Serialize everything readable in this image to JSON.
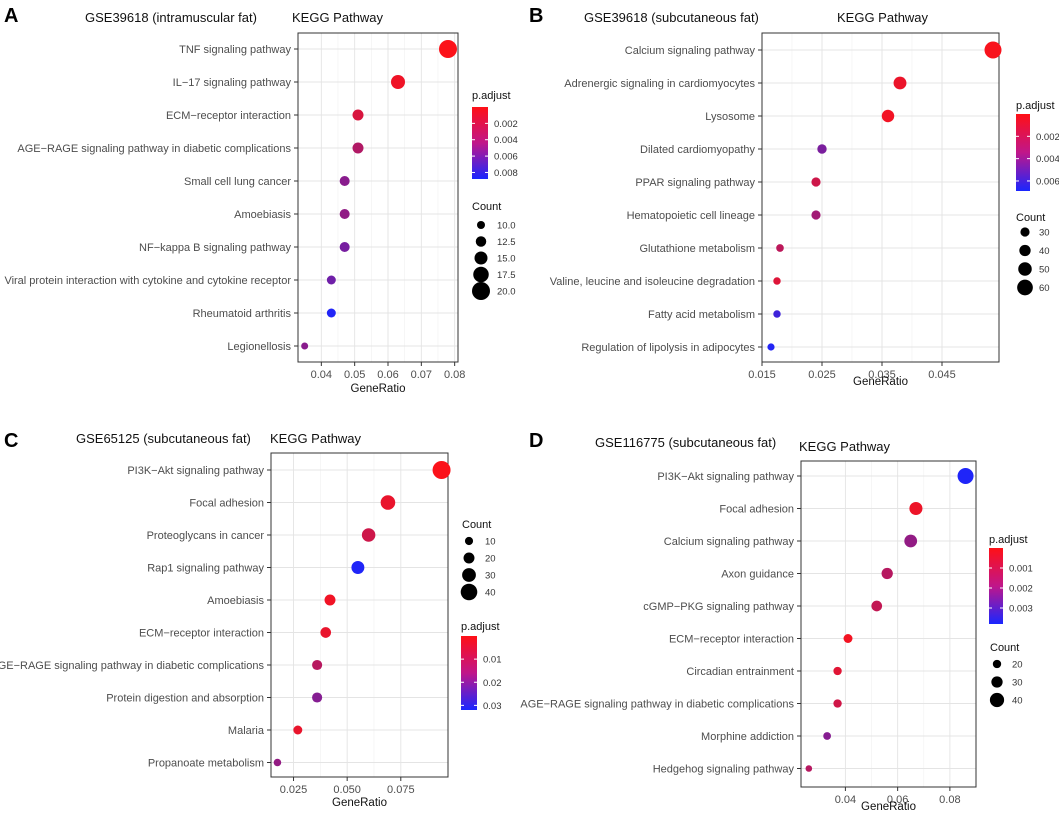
{
  "chart_data": [
    {
      "type": "scatter",
      "panel_letter": "A",
      "dataset_title": "GSE39618 (intramuscular fat)",
      "subtitle": "KEGG Pathway",
      "xlabel": "GeneRatio",
      "xlim": [
        0.033,
        0.081
      ],
      "xticks": [
        0.04,
        0.05,
        0.06,
        0.07,
        0.08
      ],
      "xtick_labels": [
        "0.04",
        "0.05",
        "0.06",
        "0.07",
        "0.08"
      ],
      "padj_range": [
        0.0,
        0.0088
      ],
      "padj_ticks": [
        0.002,
        0.004,
        0.006,
        0.008
      ],
      "padj_tick_labels": [
        "0.002",
        "0.004",
        "0.006",
        "0.008"
      ],
      "count_range": [
        7,
        20
      ],
      "count_ticks": [
        10,
        12.5,
        15,
        17.5,
        20
      ],
      "count_tick_labels": [
        "10.0",
        "12.5",
        "15.0",
        "17.5",
        "20.0"
      ],
      "legend_order": [
        "padj",
        "count"
      ],
      "legend_titles": {
        "padj": "p.adjust",
        "count": "Count"
      },
      "pathways": [
        {
          "name": "TNF signaling pathway",
          "gene_ratio": 0.078,
          "count": 20,
          "p_adjust": 0.0001
        },
        {
          "name": "IL−17 signaling pathway",
          "gene_ratio": 0.063,
          "count": 16,
          "p_adjust": 0.0006
        },
        {
          "name": "ECM−receptor interaction",
          "gene_ratio": 0.051,
          "count": 13,
          "p_adjust": 0.0015
        },
        {
          "name": "AGE−RAGE signaling pathway in diabetic complications",
          "gene_ratio": 0.051,
          "count": 13,
          "p_adjust": 0.003
        },
        {
          "name": "Small cell lung cancer",
          "gene_ratio": 0.047,
          "count": 12,
          "p_adjust": 0.0045
        },
        {
          "name": "Amoebiasis",
          "gene_ratio": 0.047,
          "count": 12,
          "p_adjust": 0.0042
        },
        {
          "name": "NF−kappa B signaling pathway",
          "gene_ratio": 0.047,
          "count": 12,
          "p_adjust": 0.0052
        },
        {
          "name": "Viral protein interaction with cytokine and cytokine receptor",
          "gene_ratio": 0.043,
          "count": 11,
          "p_adjust": 0.0055
        },
        {
          "name": "Rheumatoid arthritis",
          "gene_ratio": 0.043,
          "count": 11,
          "p_adjust": 0.0085
        },
        {
          "name": "Legionellosis",
          "gene_ratio": 0.035,
          "count": 9,
          "p_adjust": 0.0045
        }
      ]
    },
    {
      "type": "scatter",
      "panel_letter": "B",
      "dataset_title": "GSE39618 (subcutaneous fat)",
      "subtitle": "KEGG Pathway",
      "xlabel": "GeneRatio",
      "xlim": [
        0.015,
        0.0545
      ],
      "xticks": [
        0.015,
        0.025,
        0.035,
        0.045
      ],
      "xtick_labels": [
        "0.015",
        "0.025",
        "0.035",
        "0.045"
      ],
      "padj_range": [
        0.0,
        0.0069
      ],
      "padj_ticks": [
        0.002,
        0.004,
        0.006
      ],
      "padj_tick_labels": [
        "0.002",
        "0.004",
        "0.006"
      ],
      "count_range": [
        20,
        66
      ],
      "count_ticks": [
        30,
        40,
        50,
        60
      ],
      "count_tick_labels": [
        "30",
        "40",
        "50",
        "60"
      ],
      "legend_order": [
        "padj",
        "count"
      ],
      "legend_titles": {
        "padj": "p.adjust",
        "count": "Count"
      },
      "pathways": [
        {
          "name": "Calcium signaling pathway",
          "gene_ratio": 0.0535,
          "count": 66,
          "p_adjust": 0.0002
        },
        {
          "name": "Adrenergic signaling in cardiomyocytes",
          "gene_ratio": 0.038,
          "count": 47,
          "p_adjust": 0.0006
        },
        {
          "name": "Lysosome",
          "gene_ratio": 0.036,
          "count": 45,
          "p_adjust": 0.0004
        },
        {
          "name": "Dilated cardiomyopathy",
          "gene_ratio": 0.025,
          "count": 31,
          "p_adjust": 0.004
        },
        {
          "name": "PPAR signaling pathway",
          "gene_ratio": 0.024,
          "count": 30,
          "p_adjust": 0.0015
        },
        {
          "name": "Hematopoietic cell lineage",
          "gene_ratio": 0.024,
          "count": 30,
          "p_adjust": 0.0028
        },
        {
          "name": "Glutathione metabolism",
          "gene_ratio": 0.018,
          "count": 23,
          "p_adjust": 0.002
        },
        {
          "name": "Valine, leucine and isoleucine degradation",
          "gene_ratio": 0.0175,
          "count": 22,
          "p_adjust": 0.001
        },
        {
          "name": "Fatty acid metabolism",
          "gene_ratio": 0.0175,
          "count": 22,
          "p_adjust": 0.0058
        },
        {
          "name": "Regulation of lipolysis in adipocytes",
          "gene_ratio": 0.0165,
          "count": 21,
          "p_adjust": 0.0066
        }
      ]
    },
    {
      "type": "scatter",
      "panel_letter": "C",
      "dataset_title": "GSE65125 (subcutaneous fat)",
      "subtitle": "KEGG Pathway",
      "xlabel": "GeneRatio",
      "xlim": [
        0.0145,
        0.097
      ],
      "xticks": [
        0.025,
        0.05,
        0.075
      ],
      "xtick_labels": [
        "0.025",
        "0.050",
        "0.075"
      ],
      "padj_range": [
        0.0,
        0.032
      ],
      "padj_ticks": [
        0.01,
        0.02,
        0.03
      ],
      "padj_tick_labels": [
        "0.01",
        "0.02",
        "0.03"
      ],
      "count_range": [
        6,
        45
      ],
      "count_ticks": [
        10,
        20,
        30,
        40
      ],
      "count_tick_labels": [
        "10",
        "20",
        "30",
        "40"
      ],
      "legend_order": [
        "count",
        "padj"
      ],
      "legend_titles": {
        "padj": "p.adjust",
        "count": "Count"
      },
      "pathways": [
        {
          "name": "PI3K−Akt signaling pathway",
          "gene_ratio": 0.094,
          "count": 45,
          "p_adjust": 0.0005
        },
        {
          "name": "Focal adhesion",
          "gene_ratio": 0.069,
          "count": 33,
          "p_adjust": 0.003
        },
        {
          "name": "Proteoglycans in cancer",
          "gene_ratio": 0.06,
          "count": 29,
          "p_adjust": 0.007
        },
        {
          "name": "Rap1 signaling pathway",
          "gene_ratio": 0.055,
          "count": 27,
          "p_adjust": 0.031
        },
        {
          "name": "Amoebiasis",
          "gene_ratio": 0.042,
          "count": 20,
          "p_adjust": 0.002
        },
        {
          "name": "ECM−receptor interaction",
          "gene_ratio": 0.04,
          "count": 19,
          "p_adjust": 0.003
        },
        {
          "name": "AGE−RAGE signaling pathway in diabetic complications",
          "gene_ratio": 0.036,
          "count": 17,
          "p_adjust": 0.01
        },
        {
          "name": "Protein digestion and absorption",
          "gene_ratio": 0.036,
          "count": 17,
          "p_adjust": 0.017
        },
        {
          "name": "Malaria",
          "gene_ratio": 0.027,
          "count": 13,
          "p_adjust": 0.003
        },
        {
          "name": "Propanoate metabolism",
          "gene_ratio": 0.0175,
          "count": 8,
          "p_adjust": 0.015
        }
      ]
    },
    {
      "type": "scatter",
      "panel_letter": "D",
      "dataset_title": "GSE116775  (subcutaneous fat)",
      "subtitle": "KEGG Pathway",
      "xlabel": "GeneRatio",
      "xlim": [
        0.023,
        0.09
      ],
      "xticks": [
        0.04,
        0.06,
        0.08
      ],
      "xtick_labels": [
        "0.04",
        "0.06",
        "0.08"
      ],
      "padj_range": [
        0.0,
        0.0038
      ],
      "padj_ticks": [
        0.001,
        0.002,
        0.003
      ],
      "padj_tick_labels": [
        "0.001",
        "0.002",
        "0.003"
      ],
      "count_range": [
        12,
        46
      ],
      "count_ticks": [
        20,
        30,
        40
      ],
      "count_tick_labels": [
        "20",
        "30",
        "40"
      ],
      "legend_order": [
        "padj",
        "count"
      ],
      "legend_titles": {
        "padj": "p.adjust",
        "count": "Count"
      },
      "pathways": [
        {
          "name": "PI3K−Akt signaling pathway",
          "gene_ratio": 0.086,
          "count": 46,
          "p_adjust": 0.0037
        },
        {
          "name": "Focal adhesion",
          "gene_ratio": 0.067,
          "count": 36,
          "p_adjust": 0.0003
        },
        {
          "name": "Calcium signaling pathway",
          "gene_ratio": 0.065,
          "count": 35,
          "p_adjust": 0.0018
        },
        {
          "name": "Axon guidance",
          "gene_ratio": 0.056,
          "count": 30,
          "p_adjust": 0.0012
        },
        {
          "name": "cGMP−PKG signaling pathway",
          "gene_ratio": 0.052,
          "count": 28,
          "p_adjust": 0.001
        },
        {
          "name": "ECM−receptor interaction",
          "gene_ratio": 0.041,
          "count": 22,
          "p_adjust": 0.0002
        },
        {
          "name": "Circadian entrainment",
          "gene_ratio": 0.037,
          "count": 20,
          "p_adjust": 0.0005
        },
        {
          "name": "AGE−RAGE signaling pathway in diabetic complications",
          "gene_ratio": 0.037,
          "count": 20,
          "p_adjust": 0.0008
        },
        {
          "name": "Morphine addiction",
          "gene_ratio": 0.033,
          "count": 18,
          "p_adjust": 0.002
        },
        {
          "name": "Hedgehog signaling pathway",
          "gene_ratio": 0.026,
          "count": 14,
          "p_adjust": 0.0012
        }
      ]
    }
  ]
}
